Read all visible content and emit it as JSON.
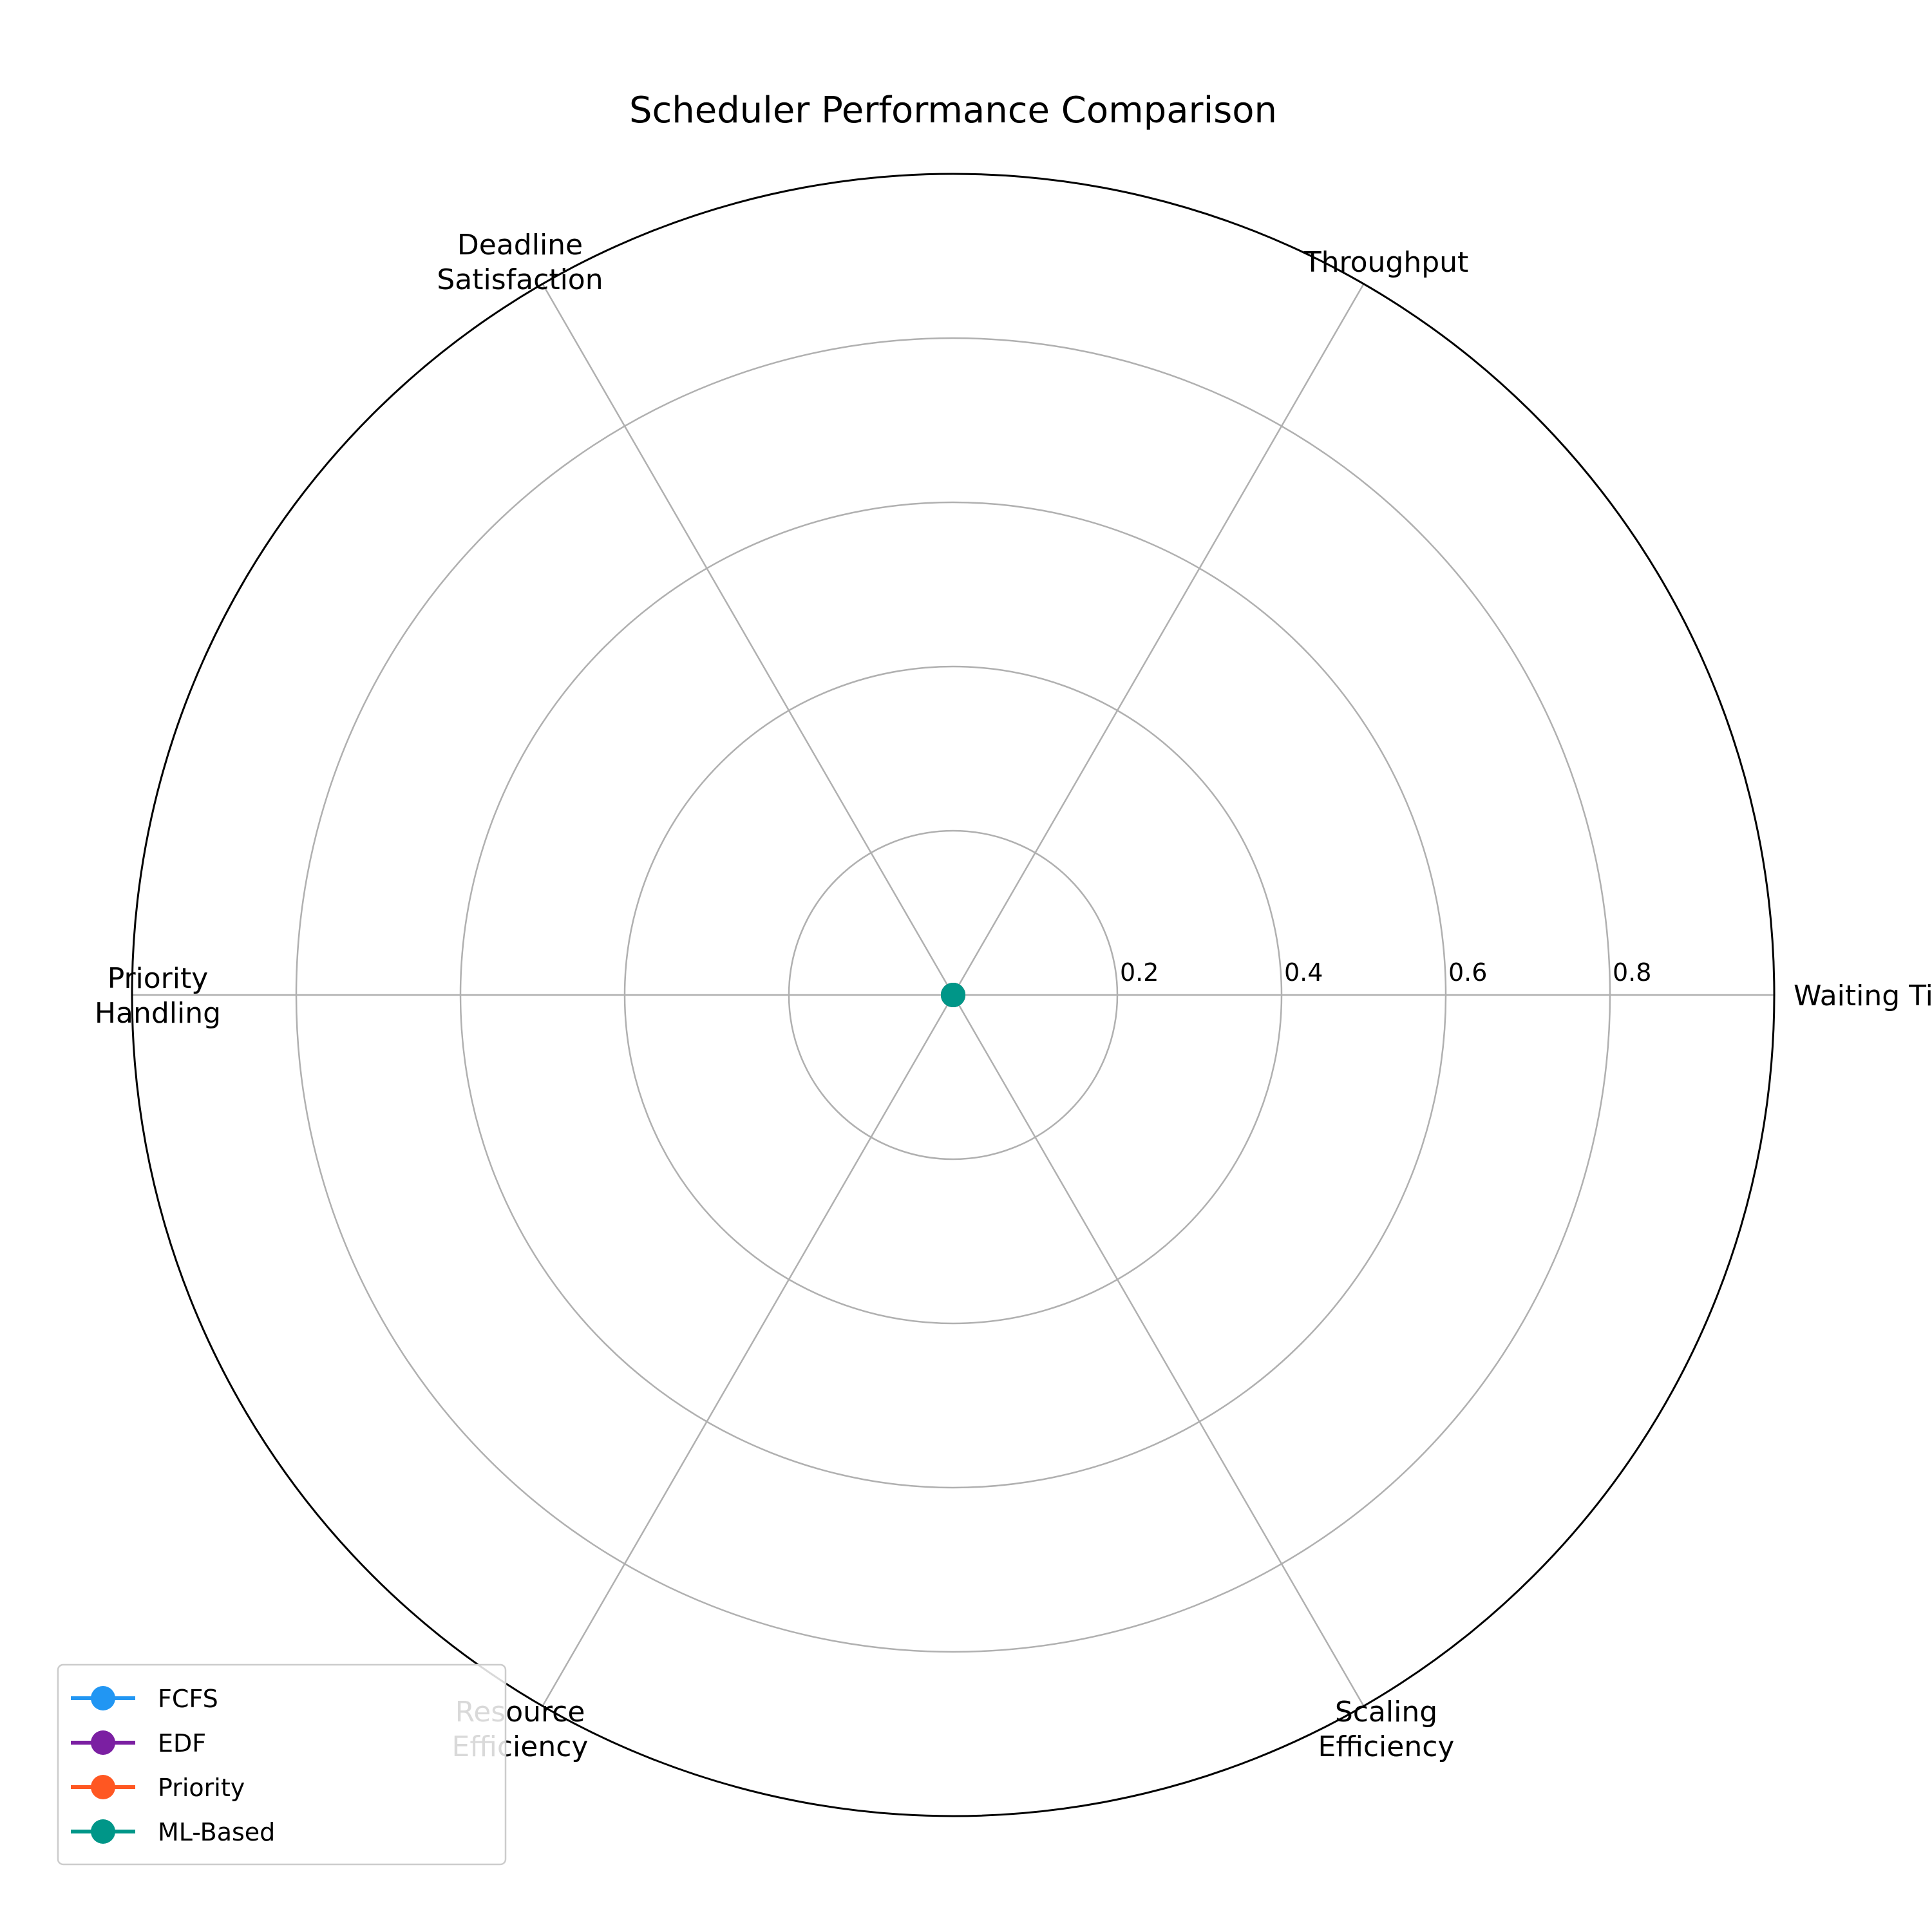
{
  "chart_data": {
    "type": "radar",
    "title": "Scheduler Performance Comparison",
    "axes": [
      [
        "Waiting Time"
      ],
      [
        "Throughput"
      ],
      [
        "Deadline",
        "Satisfaction"
      ],
      [
        "Priority",
        "Handling"
      ],
      [
        "Resource",
        "Efficiency"
      ],
      [
        "Scaling",
        "Efficiency"
      ]
    ],
    "rlim": [
      0,
      1.0
    ],
    "rticks": [
      0.2,
      0.4,
      0.6,
      0.8
    ],
    "rtick_labels": [
      "0.2",
      "0.4",
      "0.6",
      "0.8"
    ],
    "grid": true,
    "legend_position": "bottom-left",
    "series": [
      {
        "name": "FCFS",
        "color": "#2196F3",
        "values": [
          0,
          0,
          0,
          0,
          0,
          0
        ]
      },
      {
        "name": "EDF",
        "color": "#7B1FA2",
        "values": [
          0,
          0,
          0,
          0,
          0,
          0
        ]
      },
      {
        "name": "Priority",
        "color": "#FF5722",
        "values": [
          0,
          0,
          0,
          0,
          0,
          0
        ]
      },
      {
        "name": "ML-Based",
        "color": "#009688",
        "values": [
          0,
          0,
          0,
          0,
          0,
          0
        ]
      }
    ]
  }
}
